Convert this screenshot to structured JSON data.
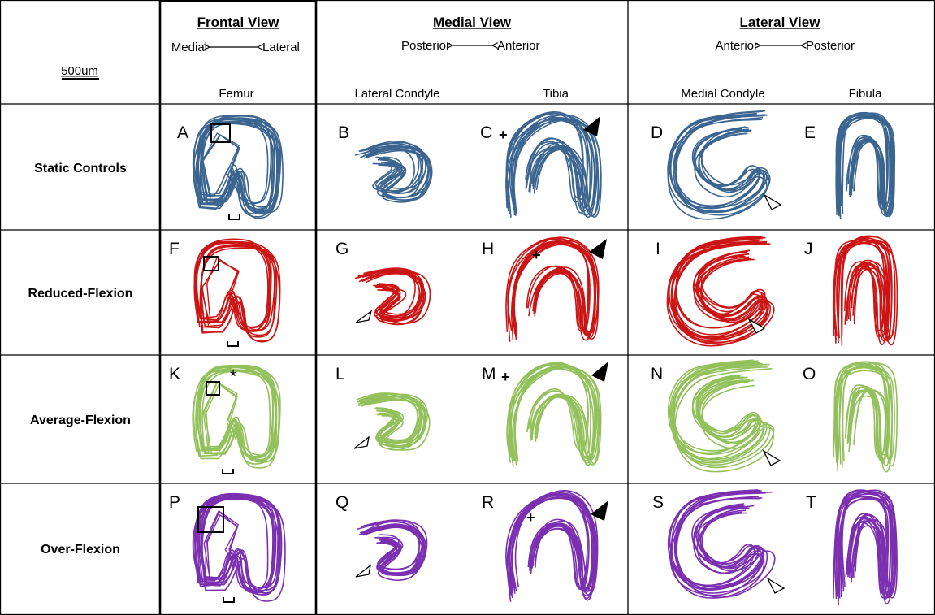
{
  "scale_bar": {
    "label": "500um"
  },
  "columns": {
    "frontal": {
      "title": "Frontal View",
      "dir_left": "Medial",
      "dir_right": "Lateral",
      "sub": [
        "Femur"
      ]
    },
    "medial": {
      "title": "Medial View",
      "dir_left": "Posterior",
      "dir_right": "Anterior",
      "sub": [
        "Lateral Condyle",
        "Tibia"
      ]
    },
    "lateral": {
      "title": "Lateral View",
      "dir_left": "Anterior",
      "dir_right": "Posterior",
      "sub": [
        "Medial Condyle",
        "Fibula"
      ]
    }
  },
  "rows": [
    {
      "label": "Static Controls",
      "color": "#3b6590",
      "letters": [
        "A",
        "B",
        "C",
        "D",
        "E"
      ]
    },
    {
      "label": "Reduced-Flexion",
      "color": "#cc1414",
      "letters": [
        "F",
        "G",
        "H",
        "I",
        "J"
      ]
    },
    {
      "label": "Average-Flexion",
      "color": "#92c05a",
      "letters": [
        "K",
        "L",
        "M",
        "N",
        "O"
      ]
    },
    {
      "label": "Over-Flexion",
      "color": "#7b2fb0",
      "letters": [
        "P",
        "Q",
        "R",
        "S",
        "T"
      ]
    }
  ],
  "symbols": {
    "plus": "+",
    "asterisk": "*"
  }
}
